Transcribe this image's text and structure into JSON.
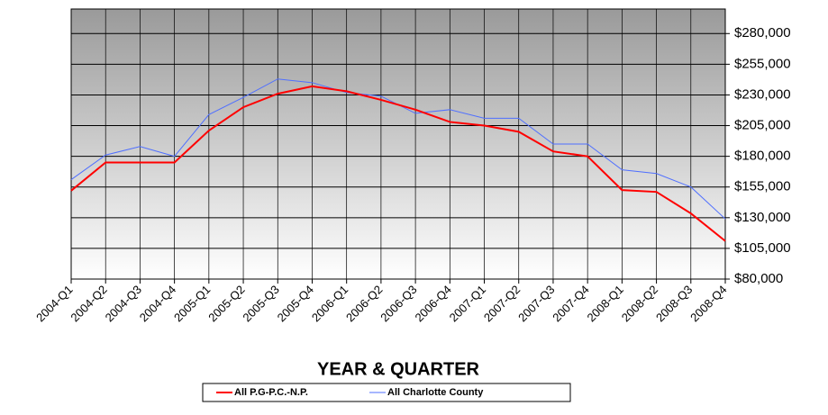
{
  "chart_data": {
    "type": "line",
    "x_label": "YEAR & QUARTER",
    "categories": [
      "2004-Q1",
      "2004-Q2",
      "2004-Q3",
      "2004-Q4",
      "2005-Q1",
      "2005-Q2",
      "2005-Q3",
      "2005-Q4",
      "2006-Q1",
      "2006-Q2",
      "2006-Q3",
      "2006-Q4",
      "2007-Q1",
      "2007-Q2",
      "2007-Q3",
      "2007-Q4",
      "2008-Q1",
      "2008-Q2",
      "2008-Q3",
      "2008-Q4"
    ],
    "series": [
      {
        "name": "All P.G-P.C.-N.P.",
        "color": "#ff0000",
        "values": [
          152000,
          175000,
          175000,
          175000,
          201000,
          220000,
          231000,
          237000,
          233000,
          226000,
          218000,
          208000,
          205000,
          200000,
          184000,
          180000,
          152500,
          151000,
          133500,
          111000
        ]
      },
      {
        "name": "All Charlotte County",
        "color": "#4f6fff",
        "values": [
          161000,
          181000,
          188000,
          180000,
          214000,
          228000,
          243000,
          240000,
          232000,
          229000,
          215000,
          218000,
          211000,
          211000,
          190000,
          190000,
          169000,
          166000,
          155000,
          129000
        ]
      }
    ],
    "ylim": [
      80000,
      300000
    ],
    "yticks": [
      {
        "value": 80000,
        "label": "$80,000"
      },
      {
        "value": 105000,
        "label": "$105,000"
      },
      {
        "value": 130000,
        "label": "$130,000"
      },
      {
        "value": 155000,
        "label": "$155,000"
      },
      {
        "value": 180000,
        "label": "$180,000"
      },
      {
        "value": 205000,
        "label": "$205,000"
      },
      {
        "value": 230000,
        "label": "$230,000"
      },
      {
        "value": 255000,
        "label": "$255,000"
      },
      {
        "value": 280000,
        "label": "$280,000"
      }
    ],
    "grid": true,
    "y_axis_side": "right",
    "legend": "bottom"
  }
}
